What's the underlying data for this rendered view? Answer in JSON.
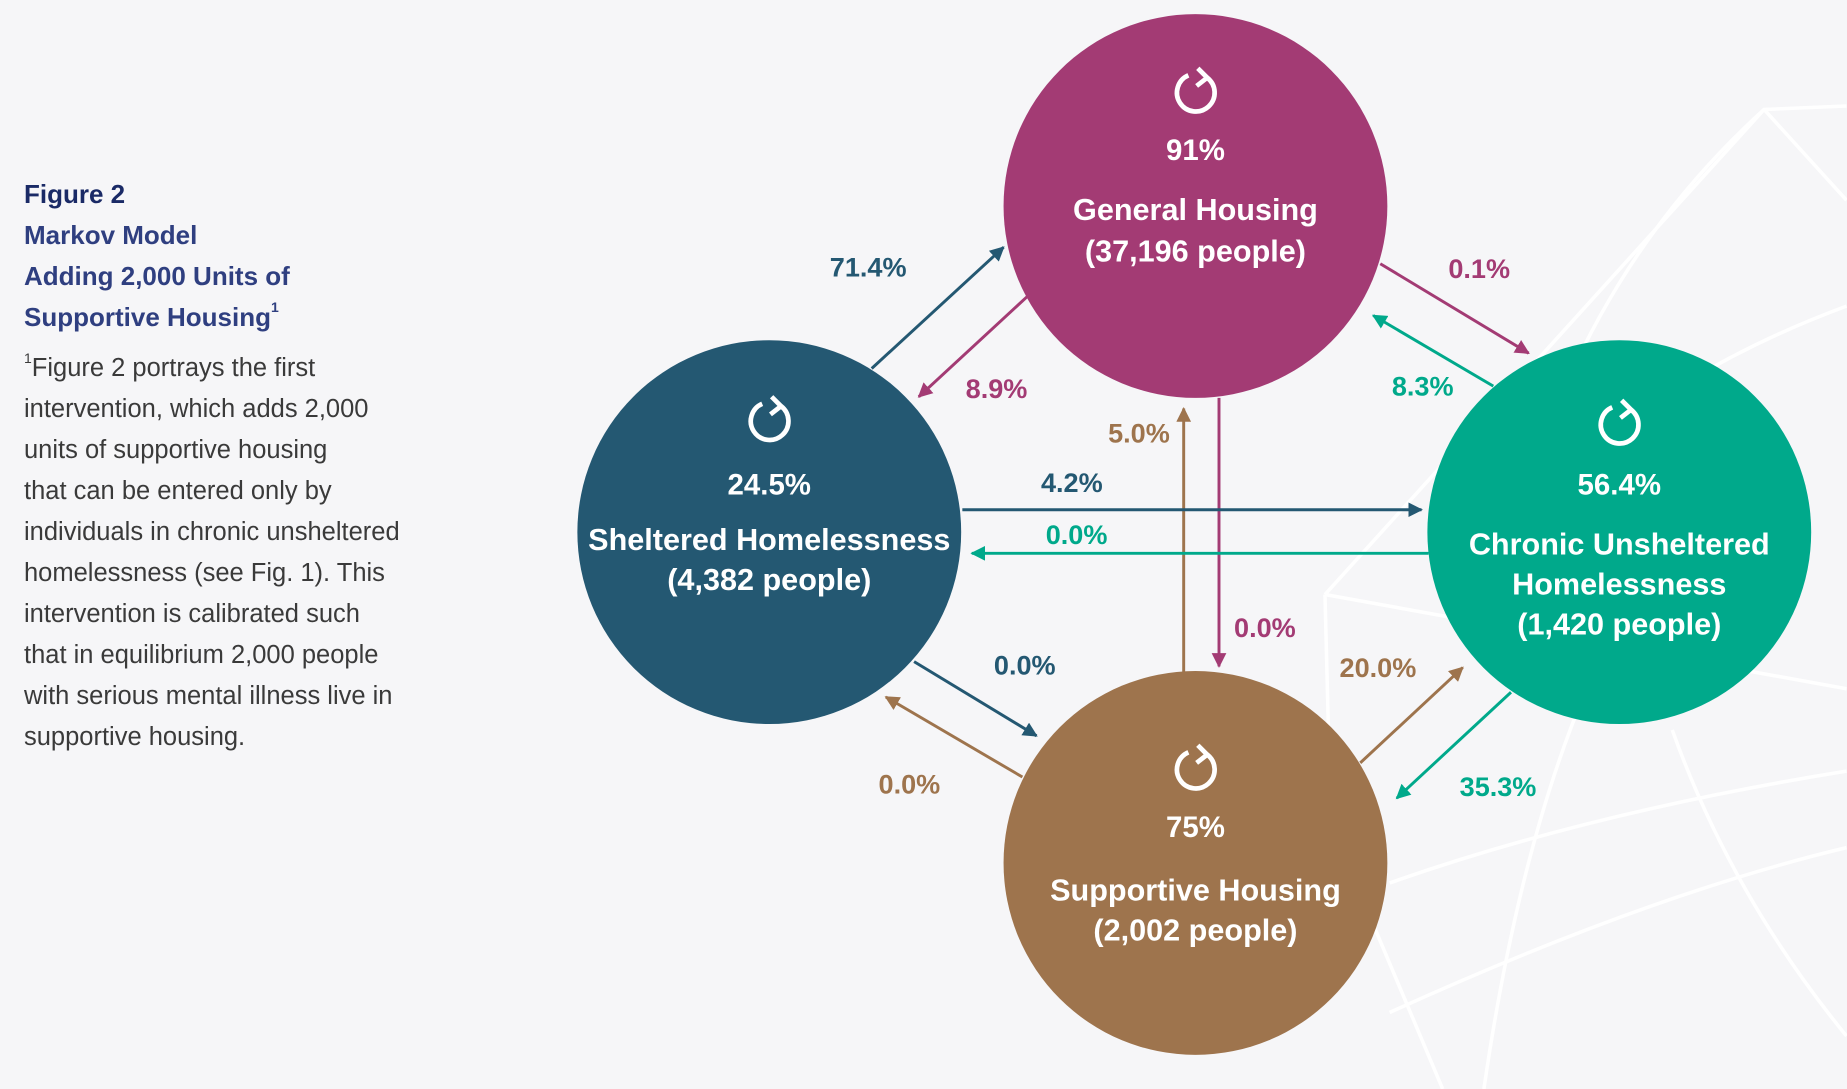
{
  "caption": {
    "figure": "Figure 2",
    "title_line1": "Markov Model",
    "title_line2": "Adding 2,000 Units of",
    "title_line3": "Supportive Housing",
    "title_sup": "1",
    "note_sup": "1",
    "note_lines": [
      "Figure 2 portrays the first",
      "intervention, which adds 2,000",
      "units of supportive housing",
      "that can be entered only by",
      "individuals in chronic unsheltered",
      "homelessness (see Fig. 1). This",
      "intervention is calibrated such",
      "that in equilibrium 2,000 people",
      "with serious mental illness live in",
      "supportive housing."
    ]
  },
  "colors": {
    "general": "#a33b74",
    "sheltered": "#245872",
    "chronic": "#00a98b",
    "supportive": "#9e744d"
  },
  "nodes": {
    "general": {
      "icon": "refresh-icon",
      "stay": "91%",
      "name": "General Housing",
      "count": "(37,196 people)"
    },
    "sheltered": {
      "icon": "refresh-icon",
      "stay": "24.5%",
      "name": "Sheltered Homelessness",
      "count": "(4,382 people)"
    },
    "chronic": {
      "icon": "refresh-icon",
      "stay": "56.4%",
      "name1": "Chronic Unsheltered",
      "name2": "Homelessness",
      "count": "(1,420 people)"
    },
    "supportive": {
      "icon": "refresh-icon",
      "stay": "75%",
      "name": "Supportive Housing",
      "count": "(2,002 people)"
    }
  },
  "edges": {
    "sheltered_to_general": "71.4%",
    "general_to_sheltered": "8.9%",
    "general_to_chronic": "0.1%",
    "chronic_to_general": "8.3%",
    "supportive_to_general": "5.0%",
    "general_to_supportive": "0.0%",
    "sheltered_to_chronic": "4.2%",
    "chronic_to_sheltered": "0.0%",
    "sheltered_to_supportive": "0.0%",
    "supportive_to_sheltered": "0.0%",
    "supportive_to_chronic": "20.0%",
    "chronic_to_supportive": "35.3%"
  }
}
